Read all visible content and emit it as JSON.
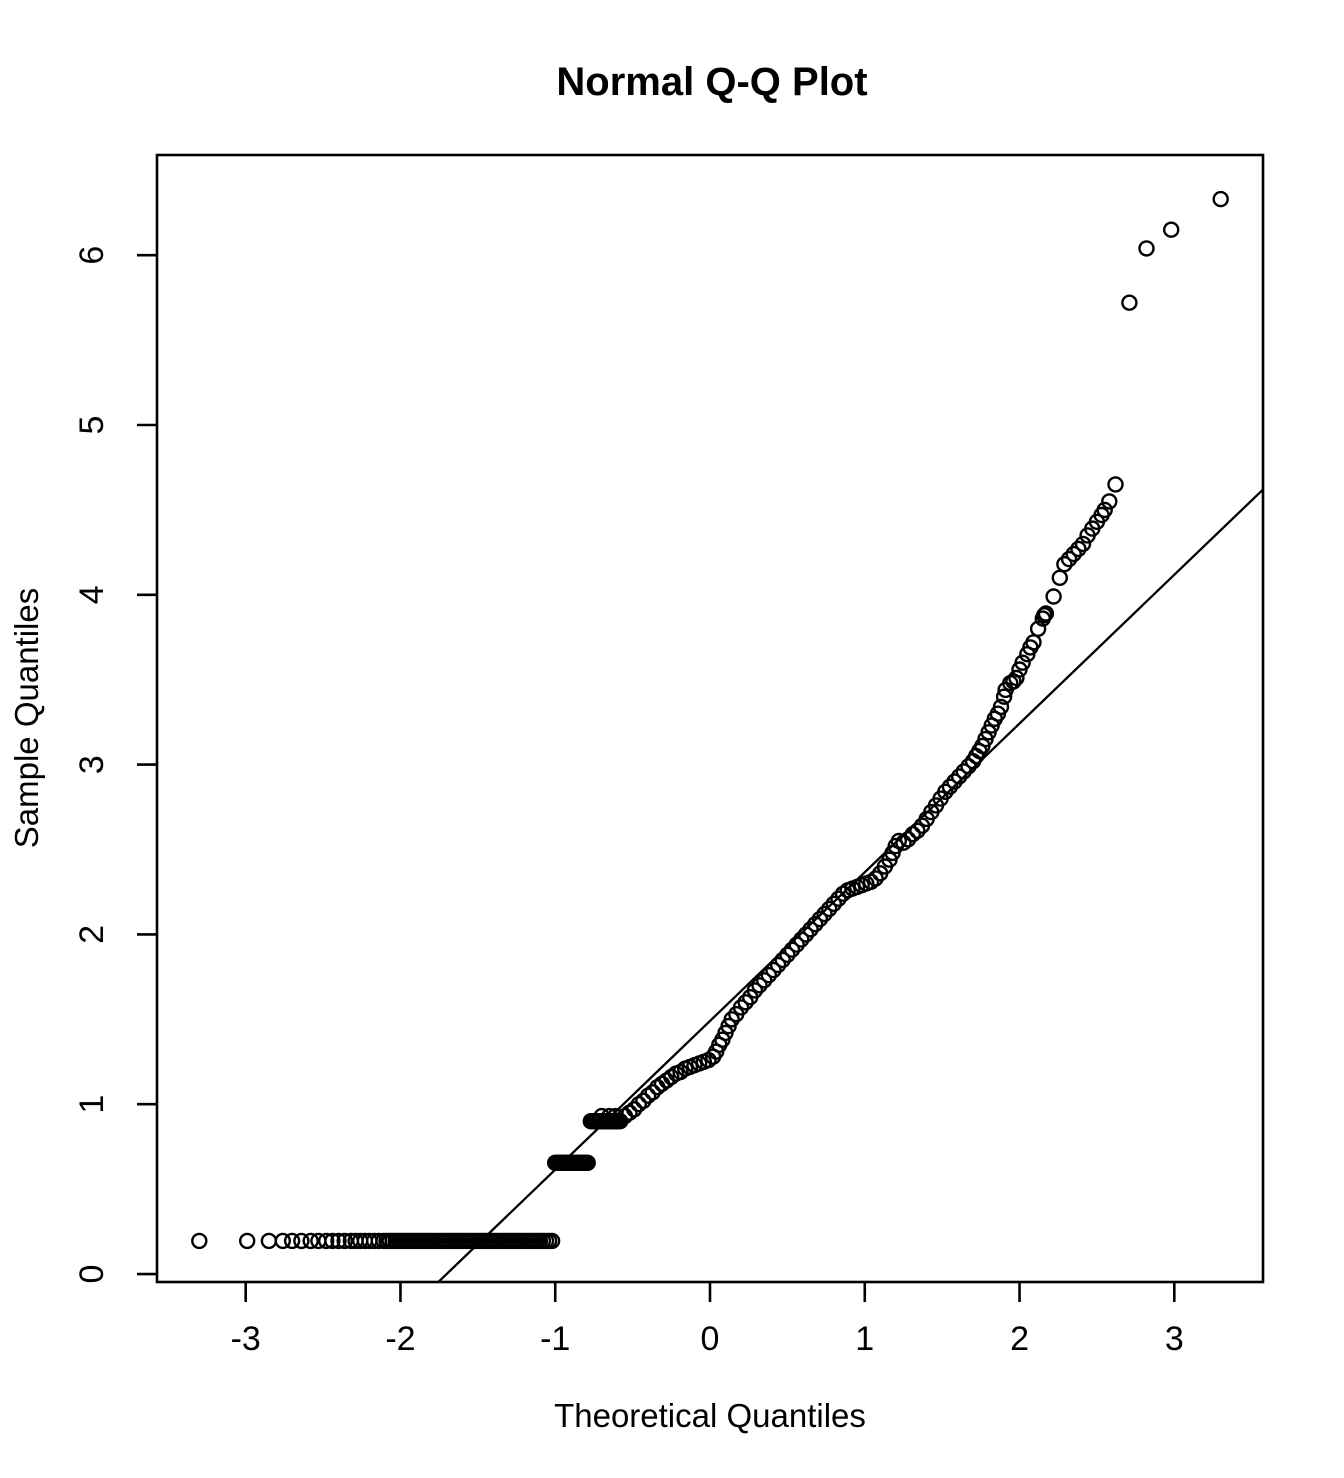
{
  "title": "Normal Q-Q Plot",
  "chart_data": {
    "type": "scatter",
    "title": "Normal Q-Q Plot",
    "xlabel": "Theoretical Quantiles",
    "ylabel": "Sample Quantiles",
    "xlim": [
      -3.573,
      3.573
    ],
    "ylim": [
      -0.047,
      6.59
    ],
    "x_ticks": [
      "-3",
      "-2",
      "-1",
      "0",
      "1",
      "2",
      "3"
    ],
    "x_tick_values": [
      -3,
      -2,
      -1,
      0,
      1,
      2,
      3
    ],
    "y_ticks": [
      "0",
      "1",
      "2",
      "3",
      "4",
      "5",
      "6"
    ],
    "y_tick_values": [
      0,
      1,
      2,
      3,
      4,
      5,
      6
    ],
    "grid": false,
    "legend": "none",
    "marker": "open-circle",
    "marker_radius_px": 7,
    "colors": {
      "points": "#000000",
      "reference_line": "#000000",
      "background": "#ffffff",
      "frame": "#000000"
    },
    "reference_line": {
      "slope": 0.875,
      "intercept": 1.49,
      "x1": -1.77,
      "y1": -0.06,
      "x2": 3.573,
      "y2": 4.62
    },
    "flat_runs": [
      {
        "y": 0.195,
        "x_start": -2.09,
        "x_end": -1.02,
        "count": 55
      },
      {
        "y": 0.655,
        "x_start": -1.0,
        "x_end": -0.79,
        "count": 22
      },
      {
        "y": 0.9,
        "x_start": -0.77,
        "x_end": -0.58,
        "count": 20
      }
    ],
    "points": [
      [
        -3.3,
        0.195
      ],
      [
        -2.99,
        0.195
      ],
      [
        -2.85,
        0.195
      ],
      [
        -2.76,
        0.195
      ],
      [
        -2.7,
        0.195
      ],
      [
        -2.64,
        0.195
      ],
      [
        -2.58,
        0.195
      ],
      [
        -2.53,
        0.195
      ],
      [
        -2.48,
        0.195
      ],
      [
        -2.44,
        0.195
      ],
      [
        -2.4,
        0.195
      ],
      [
        -2.36,
        0.195
      ],
      [
        -2.32,
        0.195
      ],
      [
        -2.29,
        0.195
      ],
      [
        -2.26,
        0.195
      ],
      [
        -2.23,
        0.195
      ],
      [
        -2.2,
        0.195
      ],
      [
        -2.17,
        0.195
      ],
      [
        -2.14,
        0.195
      ],
      [
        -2.11,
        0.195
      ],
      [
        -0.7,
        0.93
      ],
      [
        -0.65,
        0.93
      ],
      [
        -0.61,
        0.93
      ],
      [
        -0.55,
        0.93
      ],
      [
        -0.52,
        0.95
      ],
      [
        -0.49,
        0.97
      ],
      [
        -0.46,
        1.0
      ],
      [
        -0.43,
        1.02
      ],
      [
        -0.4,
        1.05
      ],
      [
        -0.37,
        1.07
      ],
      [
        -0.34,
        1.1
      ],
      [
        -0.31,
        1.12
      ],
      [
        -0.28,
        1.14
      ],
      [
        -0.25,
        1.16
      ],
      [
        -0.22,
        1.18
      ],
      [
        -0.19,
        1.19
      ],
      [
        -0.16,
        1.21
      ],
      [
        -0.13,
        1.22
      ],
      [
        -0.1,
        1.23
      ],
      [
        -0.07,
        1.24
      ],
      [
        -0.04,
        1.25
      ],
      [
        -0.01,
        1.26
      ],
      [
        0.02,
        1.28
      ],
      [
        0.04,
        1.31
      ],
      [
        0.06,
        1.35
      ],
      [
        0.08,
        1.38
      ],
      [
        0.1,
        1.42
      ],
      [
        0.12,
        1.46
      ],
      [
        0.14,
        1.5
      ],
      [
        0.17,
        1.53
      ],
      [
        0.2,
        1.57
      ],
      [
        0.23,
        1.6
      ],
      [
        0.26,
        1.63
      ],
      [
        0.29,
        1.67
      ],
      [
        0.32,
        1.7
      ],
      [
        0.35,
        1.73
      ],
      [
        0.38,
        1.76
      ],
      [
        0.41,
        1.79
      ],
      [
        0.44,
        1.82
      ],
      [
        0.47,
        1.85
      ],
      [
        0.5,
        1.88
      ],
      [
        0.53,
        1.91
      ],
      [
        0.56,
        1.94
      ],
      [
        0.59,
        1.97
      ],
      [
        0.62,
        2.0
      ],
      [
        0.65,
        2.03
      ],
      [
        0.68,
        2.06
      ],
      [
        0.71,
        2.09
      ],
      [
        0.74,
        2.12
      ],
      [
        0.77,
        2.15
      ],
      [
        0.8,
        2.18
      ],
      [
        0.83,
        2.21
      ],
      [
        0.86,
        2.24
      ],
      [
        0.89,
        2.26
      ],
      [
        0.92,
        2.27
      ],
      [
        0.95,
        2.28
      ],
      [
        0.98,
        2.29
      ],
      [
        1.01,
        2.3
      ],
      [
        1.04,
        2.31
      ],
      [
        1.07,
        2.33
      ],
      [
        1.1,
        2.36
      ],
      [
        1.13,
        2.4
      ],
      [
        1.16,
        2.44
      ],
      [
        1.18,
        2.48
      ],
      [
        1.2,
        2.52
      ],
      [
        1.22,
        2.55
      ],
      [
        1.25,
        2.54
      ],
      [
        1.28,
        2.56
      ],
      [
        1.31,
        2.59
      ],
      [
        1.34,
        2.61
      ],
      [
        1.37,
        2.64
      ],
      [
        1.4,
        2.68
      ],
      [
        1.43,
        2.72
      ],
      [
        1.46,
        2.76
      ],
      [
        1.49,
        2.8
      ],
      [
        1.52,
        2.84
      ],
      [
        1.55,
        2.87
      ],
      [
        1.58,
        2.9
      ],
      [
        1.61,
        2.93
      ],
      [
        1.64,
        2.96
      ],
      [
        1.67,
        2.99
      ],
      [
        1.7,
        3.02
      ],
      [
        1.72,
        3.05
      ],
      [
        1.74,
        3.08
      ],
      [
        1.76,
        3.11
      ],
      [
        1.78,
        3.15
      ],
      [
        1.8,
        3.19
      ],
      [
        1.82,
        3.23
      ],
      [
        1.84,
        3.27
      ],
      [
        1.86,
        3.3
      ],
      [
        1.88,
        3.34
      ],
      [
        1.9,
        3.4
      ],
      [
        1.91,
        3.44
      ],
      [
        1.94,
        3.48
      ],
      [
        1.96,
        3.49
      ],
      [
        1.98,
        3.51
      ],
      [
        2.0,
        3.56
      ],
      [
        2.02,
        3.6
      ],
      [
        2.05,
        3.65
      ],
      [
        2.07,
        3.69
      ],
      [
        2.09,
        3.72
      ],
      [
        2.12,
        3.8
      ],
      [
        2.15,
        3.86
      ],
      [
        2.16,
        3.88
      ],
      [
        2.17,
        3.89
      ],
      [
        2.22,
        3.99
      ],
      [
        2.26,
        4.1
      ],
      [
        2.29,
        4.18
      ],
      [
        2.32,
        4.21
      ],
      [
        2.35,
        4.24
      ],
      [
        2.38,
        4.27
      ],
      [
        2.41,
        4.3
      ],
      [
        2.44,
        4.35
      ],
      [
        2.47,
        4.39
      ],
      [
        2.5,
        4.43
      ],
      [
        2.53,
        4.47
      ],
      [
        2.55,
        4.5
      ],
      [
        2.58,
        4.55
      ],
      [
        2.62,
        4.65
      ],
      [
        2.71,
        5.72
      ],
      [
        2.82,
        6.04
      ],
      [
        2.98,
        6.15
      ],
      [
        3.3,
        6.33
      ]
    ]
  },
  "layout_note": "R base graphics Q-Q plot, open circles, no grid, black frame"
}
